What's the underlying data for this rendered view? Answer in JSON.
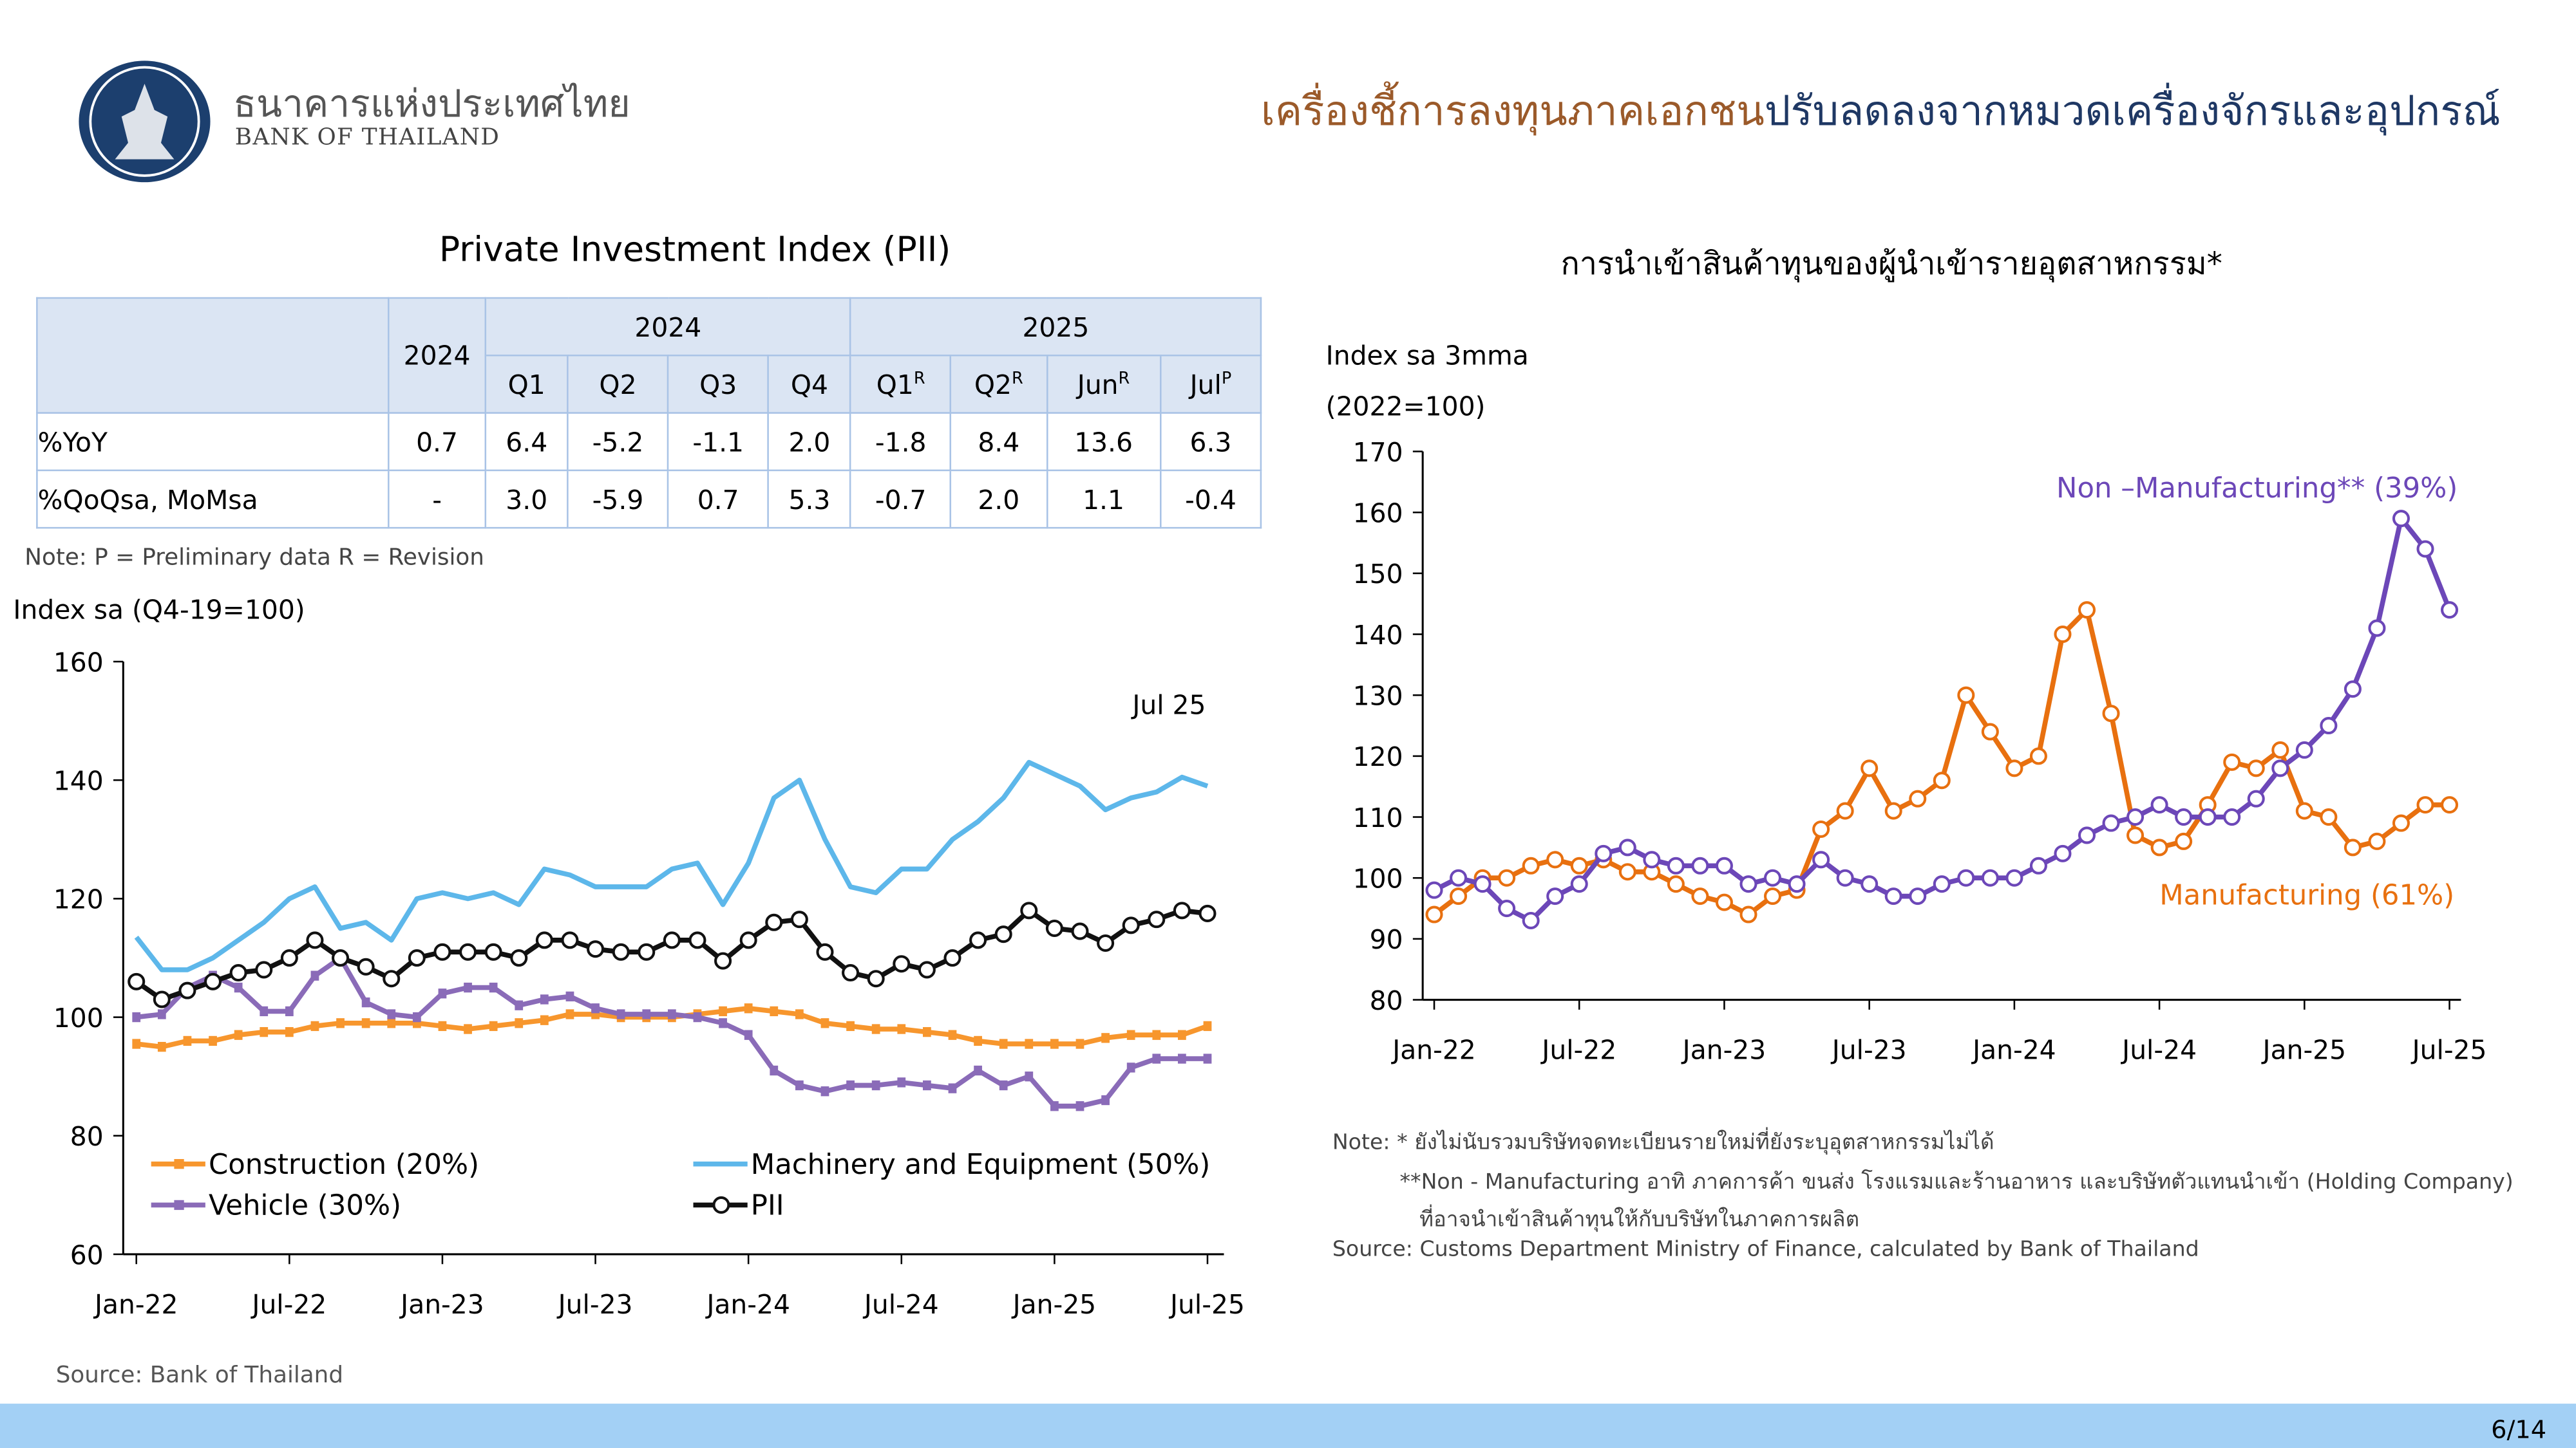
{
  "header": {
    "bank_name_th": "ธนาคารแห่งประเทศไทย",
    "bank_name_en": "BANK OF THAILAND",
    "headline_part1": "เครื่องชี้การลงทุนภาคเอกชน",
    "headline_part2": "ปรับลดลงจากหมวดเครื่องจักรและอุปกรณ์",
    "colors": {
      "part1": "#9b5a2a",
      "part2": "#1f3864"
    }
  },
  "table": {
    "title": "Private Investment Index (PII)",
    "year_col": "2024",
    "group1": "2024",
    "group2": "2025",
    "cols": [
      {
        "label": "Q1",
        "sup": ""
      },
      {
        "label": "Q2",
        "sup": ""
      },
      {
        "label": "Q3",
        "sup": ""
      },
      {
        "label": "Q4",
        "sup": ""
      },
      {
        "label": "Q1",
        "sup": "R"
      },
      {
        "label": "Q2",
        "sup": "R"
      },
      {
        "label": "Jun",
        "sup": "R"
      },
      {
        "label": "Jul",
        "sup": "P"
      }
    ],
    "rows": [
      {
        "label": "%YoY",
        "values": [
          "0.7",
          "6.4",
          "-5.2",
          "-1.1",
          "2.0",
          "-1.8",
          "8.4",
          "13.6",
          "6.3"
        ]
      },
      {
        "label": "%QoQsa, MoMsa",
        "values": [
          "-",
          "3.0",
          "-5.9",
          "0.7",
          "5.3",
          "-0.7",
          "2.0",
          "1.1",
          "-0.4"
        ]
      }
    ],
    "note": "Note: P = Preliminary data    R = Revision"
  },
  "footer": {
    "page": "6/14"
  },
  "chart_data": [
    {
      "type": "line",
      "ylabel": "Index sa (Q4-19=100)",
      "ylim": [
        60,
        160
      ],
      "yticks": [
        60,
        80,
        100,
        120,
        140,
        160
      ],
      "xticks": [
        "Jan-22",
        "Jul-22",
        "Jan-23",
        "Jul-23",
        "Jan-24",
        "Jul-24",
        "Jan-25",
        "Jul-25"
      ],
      "x_range": [
        "Jan-22",
        "Jul-25"
      ],
      "annotation": "Jul 25",
      "legend": "bottom",
      "source": "Source: Bank of Thailand",
      "series": [
        {
          "name": "Construction (20%)",
          "color": "#f7962d",
          "marker": "square",
          "values": [
            95.5,
            95,
            96,
            96,
            97,
            97.5,
            97.5,
            98.5,
            99,
            99,
            99,
            99,
            98.5,
            98,
            98.5,
            99,
            99.5,
            100.5,
            100.5,
            100,
            100,
            100,
            100.5,
            101,
            101.5,
            101,
            100.5,
            99,
            98.5,
            98,
            98,
            97.5,
            97,
            96,
            95.5,
            95.5,
            95.5,
            95.5,
            96.5,
            97,
            97,
            97,
            98.5
          ]
        },
        {
          "name": "Machinery and Equipment (50%)",
          "color": "#5db7ea",
          "marker": "none",
          "values": [
            113.5,
            108,
            108,
            110,
            113,
            116,
            120,
            122,
            115,
            116,
            113,
            120,
            121,
            120,
            121,
            119,
            125,
            124,
            122,
            122,
            122,
            125,
            126,
            119,
            126,
            137,
            140,
            130,
            122,
            121,
            125,
            125,
            130,
            133,
            137,
            143,
            141,
            139,
            135,
            137,
            138,
            140.5,
            139
          ]
        },
        {
          "name": "Vehicle (30%)",
          "color": "#8a6bb8",
          "marker": "square",
          "values": [
            100,
            100.5,
            105,
            107,
            105,
            101,
            101,
            107,
            110,
            102.5,
            100.5,
            100,
            104,
            105,
            105,
            102,
            103,
            103.5,
            101.5,
            100.5,
            100.5,
            100.5,
            100,
            99,
            97,
            91,
            88.5,
            87.5,
            88.5,
            88.5,
            89,
            88.5,
            88,
            91,
            88.5,
            90,
            85,
            85,
            86,
            91.5,
            93,
            93,
            93
          ]
        },
        {
          "name": "PII",
          "color": "#111111",
          "marker": "circle",
          "values": [
            106,
            103,
            104.5,
            106,
            107.5,
            108,
            110,
            113,
            110,
            108.5,
            106.5,
            110,
            111,
            111,
            111,
            110,
            113,
            113,
            111.5,
            111,
            111,
            113,
            113,
            109.5,
            113,
            116,
            116.5,
            111,
            107.5,
            106.5,
            109,
            108,
            110,
            113,
            114,
            118,
            115,
            114.5,
            112.5,
            115.5,
            116.5,
            118,
            117.5
          ]
        }
      ]
    },
    {
      "type": "line",
      "title": "การนำเข้าสินค้าทุนของผู้นำเข้ารายอุตสาหกรรม*",
      "ylabel": "Index sa 3mma",
      "ylabel2": "(2022=100)",
      "ylim": [
        80,
        170
      ],
      "yticks": [
        80,
        90,
        100,
        110,
        120,
        130,
        140,
        150,
        160,
        170
      ],
      "xticks": [
        "Jan-22",
        "Jul-22",
        "Jan-23",
        "Jul-23",
        "Jan-24",
        "Jul-24",
        "Jan-25",
        "Jul-25"
      ],
      "x_range": [
        "Jan-22",
        "Jul-25"
      ],
      "notes": [
        "Note: * ยังไม่นับรวมบริษัทจดทะเบียนรายใหม่ที่ยังระบุอุตสาหกรรมไม่ได้",
        "**Non - Manufacturing อาทิ ภาคการค้า ขนส่ง โรงแรมและร้านอาหาร และบริษัทตัวแทนนำเข้า (Holding Company)",
        "ที่อาจนำเข้าสินค้าทุนให้กับบริษัทในภาคการผลิต",
        "Source: Customs Department Ministry of Finance, calculated by Bank of Thailand"
      ],
      "series": [
        {
          "name": "Manufacturing (61%)",
          "color": "#e8700f",
          "marker": "circle",
          "values": [
            94,
            97,
            100,
            100,
            102,
            103,
            102,
            103,
            101,
            101,
            99,
            97,
            96,
            94,
            97,
            98,
            108,
            111,
            118,
            111,
            113,
            116,
            130,
            124,
            118,
            120,
            140,
            144,
            127,
            107,
            105,
            106,
            112,
            119,
            118,
            121,
            111,
            110,
            105,
            106,
            109,
            112,
            112
          ]
        },
        {
          "name": "Non –Manufacturing** (39%)",
          "color": "#6c47b8",
          "marker": "circle",
          "values": [
            98,
            100,
            99,
            95,
            93,
            97,
            99,
            104,
            105,
            103,
            102,
            102,
            102,
            99,
            100,
            99,
            103,
            100,
            99,
            97,
            97,
            99,
            100,
            100,
            100,
            102,
            104,
            107,
            109,
            110,
            112,
            110,
            110,
            110,
            113,
            118,
            121,
            125,
            131,
            141,
            159,
            154,
            144
          ]
        }
      ]
    }
  ]
}
